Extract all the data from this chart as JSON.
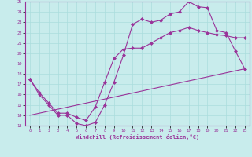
{
  "xlabel": "Windchill (Refroidissement éolien,°C)",
  "background_color": "#c8ecec",
  "line_color": "#993399",
  "grid_color": "#aadddd",
  "xlim": [
    -0.5,
    23.5
  ],
  "ylim": [
    13,
    25
  ],
  "xticks": [
    0,
    1,
    2,
    3,
    4,
    5,
    6,
    7,
    8,
    9,
    10,
    11,
    12,
    13,
    14,
    15,
    16,
    17,
    18,
    19,
    20,
    21,
    22,
    23
  ],
  "yticks": [
    13,
    14,
    15,
    16,
    17,
    18,
    19,
    20,
    21,
    22,
    23,
    24,
    25
  ],
  "line1_x": [
    0,
    1,
    2,
    3,
    4,
    5,
    6,
    7,
    8,
    9,
    10,
    11,
    12,
    13,
    14,
    15,
    16,
    17,
    18,
    19,
    20,
    21,
    22,
    23
  ],
  "line1_y": [
    17.5,
    16.0,
    15.0,
    14.0,
    14.0,
    13.2,
    13.0,
    13.3,
    15.0,
    17.2,
    19.8,
    22.8,
    23.3,
    23.0,
    23.2,
    23.8,
    24.0,
    25.0,
    24.5,
    24.4,
    22.2,
    22.0,
    20.2,
    18.5
  ],
  "line2_x": [
    0,
    1,
    2,
    3,
    4,
    5,
    6,
    7,
    8,
    9,
    10,
    11,
    12,
    13,
    14,
    15,
    16,
    17,
    18,
    19,
    20,
    21,
    22,
    23
  ],
  "line2_y": [
    17.5,
    16.2,
    15.2,
    14.2,
    14.2,
    13.8,
    13.5,
    14.8,
    17.2,
    19.5,
    20.4,
    20.5,
    20.5,
    21.0,
    21.5,
    22.0,
    22.2,
    22.5,
    22.2,
    22.0,
    21.8,
    21.7,
    21.5,
    21.5
  ],
  "line3_x": [
    0,
    23
  ],
  "line3_y": [
    14.0,
    18.5
  ],
  "marker": "D",
  "markersize": 2.0,
  "linewidth": 0.8
}
